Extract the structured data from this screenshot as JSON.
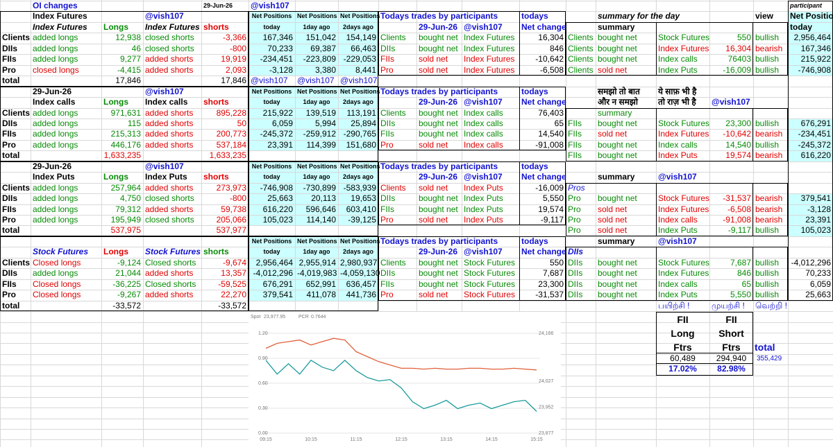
{
  "grid": [
    [
      null,
      "OI changes",
      null,
      null,
      "29-Jun-26",
      "@vish107",
      null,
      null,
      null,
      null,
      null,
      null,
      null,
      null,
      null,
      null,
      null,
      "participant"
    ],
    [
      null,
      "Index Futures",
      null,
      "@vish107",
      null,
      "Net Positions",
      "Net Positions",
      "Net Positions",
      "Todays trades by participants",
      null,
      null,
      "todays",
      null,
      "summary for the day",
      null,
      null,
      "view",
      "Net Positions"
    ],
    [
      null,
      "Index Futures",
      "Longs",
      "Index Futures",
      "shorts",
      "today",
      "1day ago",
      "2days ago",
      null,
      "29-Jun-26",
      "@vish107",
      "Net change",
      null,
      "summary",
      null,
      null,
      null,
      "today"
    ],
    [
      "Clients",
      "added longs",
      "12,938",
      "closed shorts",
      "-3,366",
      "167,346",
      "151,042",
      "154,149",
      "Clients",
      "bought net",
      "Index Futures",
      "16,304",
      "Clients",
      "bought net",
      "Stock Futures",
      "550",
      "bullish",
      "2,956,464"
    ],
    [
      "DIIs",
      "added longs",
      "46",
      "closed shorts",
      "-800",
      "70,233",
      "69,387",
      "66,463",
      "DIIs",
      "bought net",
      "Index Futures",
      "846",
      "Clients",
      "bought net",
      "Index Futures",
      "16,304",
      "bearish",
      "167,346"
    ],
    [
      "FIIs",
      "added longs",
      "9,277",
      "added shorts",
      "19,919",
      "-234,451",
      "-223,809",
      "-229,053",
      "FIIs",
      "sold net",
      "Index Futures",
      "-10,642",
      "Clients",
      "bought net",
      "Index calls",
      "76403",
      "bullish",
      "215,922"
    ],
    [
      "Pro",
      "closed longs",
      "-4,415",
      "added shorts",
      "2,093",
      "-3,128",
      "3,380",
      "8,441",
      "Pro",
      "sold net",
      "Index Futures",
      "-6,508",
      "Clients",
      "sold net",
      "Index Puts",
      "-16,009",
      "bullish",
      "-746,908"
    ],
    [
      "total",
      null,
      "17,846",
      null,
      "17,846",
      "@vish107",
      "@vish107",
      "@vish107",
      null,
      null,
      null,
      null,
      null,
      null,
      null,
      null,
      null,
      null
    ],
    [
      null,
      "29-Jun-26",
      null,
      "@vish107",
      null,
      "Net Positions",
      "Net Positions",
      "Net Positions",
      "Todays trades by participants",
      null,
      null,
      "todays",
      null,
      "समझो तो बात",
      "ये साफ़ भी है",
      null,
      null,
      null
    ],
    [
      null,
      "Index calls",
      "Longs",
      "Index calls",
      "shorts",
      "today",
      "1day ago",
      "2days ago",
      null,
      "29-Jun-26",
      "@vish107",
      "Net change",
      null,
      "और न समझो",
      "तो राज़ भी है",
      "@vish107",
      null,
      null
    ],
    [
      "Clients",
      "added longs",
      "971,631",
      "added shorts",
      "895,228",
      "215,922",
      "139,519",
      "113,191",
      "Clients",
      "bought net",
      "Index calls",
      "76,403",
      null,
      "summary",
      null,
      null,
      null,
      null
    ],
    [
      "DIIs",
      "added longs",
      "115",
      "added shorts",
      "50",
      "6,059",
      "5,994",
      "25,894",
      "DIIs",
      "bought net",
      "Index calls",
      "65",
      "FIIs",
      "bought net",
      "Stock Futures",
      "23,300",
      "bullish",
      "676,291"
    ],
    [
      "FIIs",
      "added longs",
      "215,313",
      "added shorts",
      "200,773",
      "-245,372",
      "-259,912",
      "-290,765",
      "FIIs",
      "bought net",
      "Index calls",
      "14,540",
      "FIIs",
      "sold net",
      "Index Futures",
      "-10,642",
      "bearish",
      "-234,451"
    ],
    [
      "Pro",
      "added longs",
      "446,176",
      "added shorts",
      "537,184",
      "23,391",
      "114,399",
      "151,680",
      "Pro",
      "sold net",
      "Index calls",
      "-91,008",
      "FIIs",
      "bought net",
      "Index calls",
      "14,540",
      "bullish",
      "-245,372"
    ],
    [
      "total",
      null,
      "1,633,235",
      null,
      "1,633,235",
      null,
      null,
      null,
      null,
      null,
      null,
      null,
      "FIIs",
      "bought net",
      "Index Puts",
      "19,574",
      "bearish",
      "616,220"
    ],
    [
      null,
      "29-Jun-26",
      null,
      "@vish107",
      null,
      "Net Positions",
      "Net Positions",
      "Net Positions",
      "Todays trades by participants",
      null,
      null,
      "todays",
      null,
      null,
      null,
      null,
      null,
      null
    ],
    [
      null,
      "Index Puts",
      "Longs",
      "Index Puts",
      "shorts",
      "today",
      "1day ago",
      "2days ago",
      null,
      "29-Jun-26",
      "@vish107",
      "Net change",
      null,
      "summary",
      "@vish107",
      null,
      null,
      null
    ],
    [
      "Clients",
      "added longs",
      "257,964",
      "added shorts",
      "273,973",
      "-746,908",
      "-730,899",
      "-583,939",
      "Clients",
      "sold net",
      "Index Puts",
      "-16,009",
      "Pros",
      null,
      null,
      null,
      null,
      null
    ],
    [
      "DIIs",
      "added longs",
      "4,750",
      "closed shorts",
      "-800",
      "25,663",
      "20,113",
      "19,653",
      "DIIs",
      "bought net",
      "Index Puts",
      "5,550",
      "Pro",
      "bought net",
      "Stock Futures",
      "-31,537",
      "bearish",
      "379,541"
    ],
    [
      "FIIs",
      "added longs",
      "79,312",
      "added shorts",
      "59,738",
      "616,220",
      "596,646",
      "603,410",
      "FIIs",
      "bought net",
      "Index Puts",
      "19,574",
      "Pro",
      "sold net",
      "Index Futures",
      "-6,508",
      "bearish",
      "-3,128"
    ],
    [
      "Pro",
      "added longs",
      "195,949",
      "closed shorts",
      "205,066",
      "105,023",
      "114,140",
      "-39,125",
      "Pro",
      "sold net",
      "Index Puts",
      "-9,117",
      "Pro",
      "sold net",
      "Index calls",
      "-91,008",
      "bearish",
      "23,391"
    ],
    [
      "total",
      null,
      "537,975",
      null,
      "537,977",
      null,
      null,
      null,
      null,
      null,
      null,
      null,
      "Pro",
      "sold net",
      "Index Puts",
      "-9,117",
      "bullish",
      "105,023"
    ],
    [
      null,
      null,
      null,
      null,
      null,
      "Net Positions",
      "Net Positions",
      "Net Positions",
      "Todays trades by participants",
      null,
      null,
      "todays",
      null,
      "summary",
      "@vish107",
      null,
      null,
      null
    ],
    [
      null,
      "Stock Futures",
      "Longs",
      "Stock Futures",
      "shorts",
      "today",
      "1day ago",
      "2days ago",
      null,
      "29-Jun-26",
      "@vish107",
      "Net change",
      "DIIs",
      null,
      null,
      null,
      null,
      null
    ],
    [
      "Clients",
      "Closed longs",
      "-9,124",
      "Closed shorts",
      "-9,674",
      "2,956,464",
      "2,955,914",
      "2,980,937",
      "Clients",
      "bought net",
      "Stock Futures",
      "550",
      "DIIs",
      "bought net",
      "Stock Futures",
      "7,687",
      "bullish",
      "-4,012,296"
    ],
    [
      "DIIs",
      "added longs",
      "21,044",
      "added shorts",
      "13,357",
      "-4,012,296",
      "-4,019,983",
      "-4,059,130",
      "DIIs",
      "bought net",
      "Stock Futures",
      "7,687",
      "DIIs",
      "bought net",
      "Index Futures",
      "846",
      "bullish",
      "70,233"
    ],
    [
      "FIIs",
      "Closed longs",
      "-36,225",
      "Closed shorts",
      "-59,525",
      "676,291",
      "652,991",
      "636,457",
      "FIIs",
      "bought net",
      "Stock Futures",
      "23,300",
      "DIIs",
      "bought net",
      "Index calls",
      "65",
      "bullish",
      "6,059"
    ],
    [
      "Pro",
      "Closed longs",
      "-9,267",
      "added shorts",
      "22,270",
      "379,541",
      "411,078",
      "441,736",
      "Pro",
      "sold net",
      "Stock Futures",
      "-31,537",
      "DIIs",
      "bought net",
      "Index Puts",
      "5,550",
      "bullish",
      "25,663"
    ],
    [
      "total",
      null,
      "-33,572",
      null,
      "-33,572",
      null,
      null,
      null,
      null,
      null,
      null,
      null,
      null,
      null,
      "பயிற்சி !",
      "முயற்சி !",
      "வெற்றி !",
      null
    ]
  ],
  "fii_box": {
    "rows": [
      [
        "FII",
        "FII"
      ],
      [
        "Long",
        "Short"
      ],
      [
        "Ftrs",
        "Ftrs"
      ]
    ],
    "total_label": "total",
    "values": [
      "60,489",
      "294,940"
    ],
    "total": "355,429",
    "percents": [
      "17.02%",
      "82.98%"
    ]
  },
  "chart": {
    "spot_label": "Spot",
    "spot": "23,977.95",
    "pcr_label": "PCR",
    "pcr": "0.7644",
    "x": [
      "09:15",
      "09:30",
      "09:45",
      "10:00",
      "10:15",
      "10:30",
      "10:45",
      "11:00",
      "11:15",
      "11:30",
      "11:45",
      "12:00",
      "12:15",
      "12:30",
      "12:45",
      "13:00",
      "13:15",
      "13:30",
      "13:45",
      "14:00",
      "14:15",
      "14:30",
      "14:45",
      "15:00",
      "15:15"
    ],
    "xticks": [
      "09:15",
      "10:15",
      "11:15",
      "12:15",
      "13:15",
      "14:15",
      "15:15"
    ],
    "ylim": [
      0,
      1.2
    ],
    "yticks": [
      {
        "value": 1.2,
        "label": "1.20"
      },
      {
        "value": 0.9,
        "label": "0.90"
      },
      {
        "value": 0.6,
        "label": "0.60"
      },
      {
        "value": 0.3,
        "label": "0.30"
      },
      {
        "value": 0,
        "label": "0.00"
      }
    ],
    "y2lim": [
      23877,
      24166
    ],
    "y2ticks": [
      {
        "value": 24166,
        "label": "24,166"
      },
      {
        "value": 24027,
        "label": "24,027"
      },
      {
        "value": 23952,
        "label": "23,952"
      },
      {
        "value": 23877,
        "label": "23,877"
      }
    ],
    "grid": true,
    "series": [
      {
        "color": "#e0603a",
        "values": [
          1.02,
          1.08,
          1.1,
          1.12,
          1.06,
          1.1,
          1.14,
          1.12,
          0.98,
          0.92,
          0.86,
          0.82,
          0.78,
          0.78,
          0.77,
          0.78,
          0.77,
          0.77,
          0.78,
          0.78,
          0.77,
          0.77,
          0.78,
          0.77,
          0.76
        ]
      },
      {
        "color": "#1a9a9a",
        "axis": "y2",
        "values": [
          24088,
          24048,
          24078,
          24048,
          24088,
          24068,
          24058,
          24088,
          24058,
          24038,
          24028,
          24032,
          24008,
          23968,
          23948,
          23958,
          23972,
          23948,
          23958,
          23964,
          23948,
          23958,
          23968,
          23972,
          23940
        ]
      }
    ]
  }
}
